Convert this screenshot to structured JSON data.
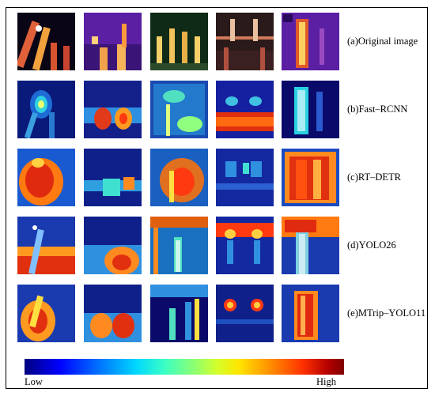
{
  "figure": {
    "row_labels": [
      "(a)Original image",
      "(b)Fast–RCNN",
      "(c)RT–DETR",
      "(d)YOLO26",
      "(e)MTrip–YOLO11"
    ],
    "colorbar": {
      "low_label": "Low",
      "high_label": "High",
      "colors": [
        "#00007f",
        "#0000ff",
        "#00d8ff",
        "#8cff73",
        "#ffe600",
        "#ff3200",
        "#7f0000"
      ]
    },
    "tile_columns": 5
  }
}
